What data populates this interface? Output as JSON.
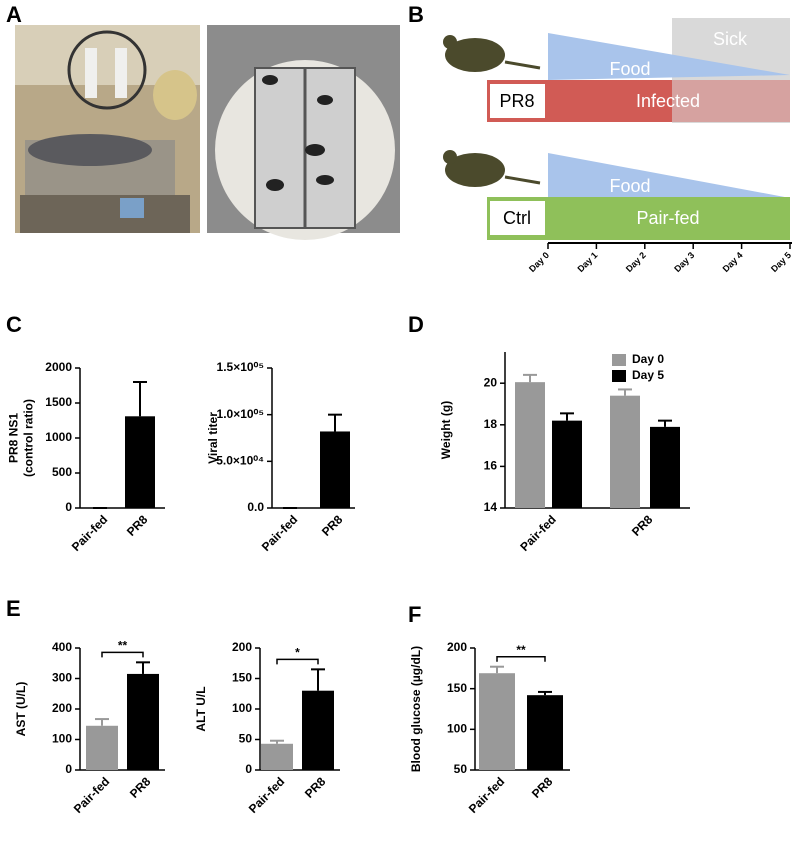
{
  "panels": [
    "A",
    "B",
    "C",
    "D",
    "E",
    "F"
  ],
  "diagram": {
    "infected": {
      "label": "PR8",
      "food": "Food",
      "state": "Infected",
      "sick": "Sick"
    },
    "control": {
      "label": "Ctrl",
      "food": "Food",
      "state": "Pair-fed"
    },
    "days": [
      "Day 0",
      "Day 1",
      "Day 2",
      "Day 3",
      "Day 4",
      "Day 5"
    ]
  },
  "chart_data": [
    {
      "type": "bar",
      "ylabel": [
        "PR8 NS1",
        "(control ratio)"
      ],
      "categories": [
        "Pair-fed",
        "PR8"
      ],
      "series": [
        {
          "colors": [
            "#000000",
            "#000000"
          ],
          "values": [
            0,
            1310
          ],
          "errors": [
            0,
            490
          ]
        }
      ],
      "ylim": [
        0,
        2000
      ],
      "yticks": [
        0,
        500,
        1000,
        1500,
        2000
      ]
    },
    {
      "type": "bar",
      "ylabel": [
        "Viral titer"
      ],
      "categories": [
        "Pair-fed",
        "PR8"
      ],
      "series": [
        {
          "colors": [
            "#000000",
            "#000000"
          ],
          "values": [
            0,
            82000
          ],
          "errors": [
            0,
            18000
          ]
        }
      ],
      "ylim": [
        0,
        150000
      ],
      "yticks": [
        {
          "value": 0,
          "label": "0.0"
        },
        {
          "value": 50000,
          "label": "5.0×10⁰⁴"
        },
        {
          "value": 100000,
          "label": "1.0×10⁰⁵"
        },
        {
          "value": 150000,
          "label": "1.5×10⁰⁵"
        }
      ]
    },
    {
      "type": "bar",
      "ylabel": [
        "Weight (g)"
      ],
      "categories": [
        "Pair-fed",
        "PR8"
      ],
      "series": [
        {
          "name": "Day 0",
          "color": "#999999",
          "values": [
            20.05,
            19.4
          ],
          "errors": [
            0.35,
            0.3
          ]
        },
        {
          "name": "Day 5",
          "color": "#000000",
          "values": [
            18.2,
            17.9
          ],
          "errors": [
            0.35,
            0.3
          ]
        }
      ],
      "ylim": [
        14,
        21.5
      ],
      "yticks": [
        14,
        16,
        18,
        20
      ],
      "legend": "top-right"
    },
    {
      "type": "bar",
      "ylabel": [
        "AST (U/L)"
      ],
      "categories": [
        "Pair-fed",
        "PR8"
      ],
      "series": [
        {
          "colors": [
            "#999999",
            "#000000"
          ],
          "values": [
            145,
            315
          ],
          "errors": [
            22,
            38
          ]
        }
      ],
      "ylim": [
        0,
        400
      ],
      "yticks": [
        0,
        100,
        200,
        300,
        400
      ],
      "significance": "**"
    },
    {
      "type": "bar",
      "ylabel": [
        "ALT U/L"
      ],
      "categories": [
        "Pair-fed",
        "PR8"
      ],
      "series": [
        {
          "colors": [
            "#999999",
            "#000000"
          ],
          "values": [
            43,
            130
          ],
          "errors": [
            5,
            35
          ]
        }
      ],
      "ylim": [
        0,
        200
      ],
      "yticks": [
        0,
        50,
        100,
        150,
        200
      ],
      "significance": "*"
    },
    {
      "type": "bar",
      "ylabel": [
        "Blood glucose (µg/dL)"
      ],
      "categories": [
        "Pair-fed",
        "PR8"
      ],
      "series": [
        {
          "colors": [
            "#999999",
            "#000000"
          ],
          "values": [
            169,
            142
          ],
          "errors": [
            8,
            4
          ]
        }
      ],
      "ylim": [
        50,
        200
      ],
      "yticks": [
        50,
        100,
        150,
        200
      ],
      "significance": "**"
    }
  ]
}
